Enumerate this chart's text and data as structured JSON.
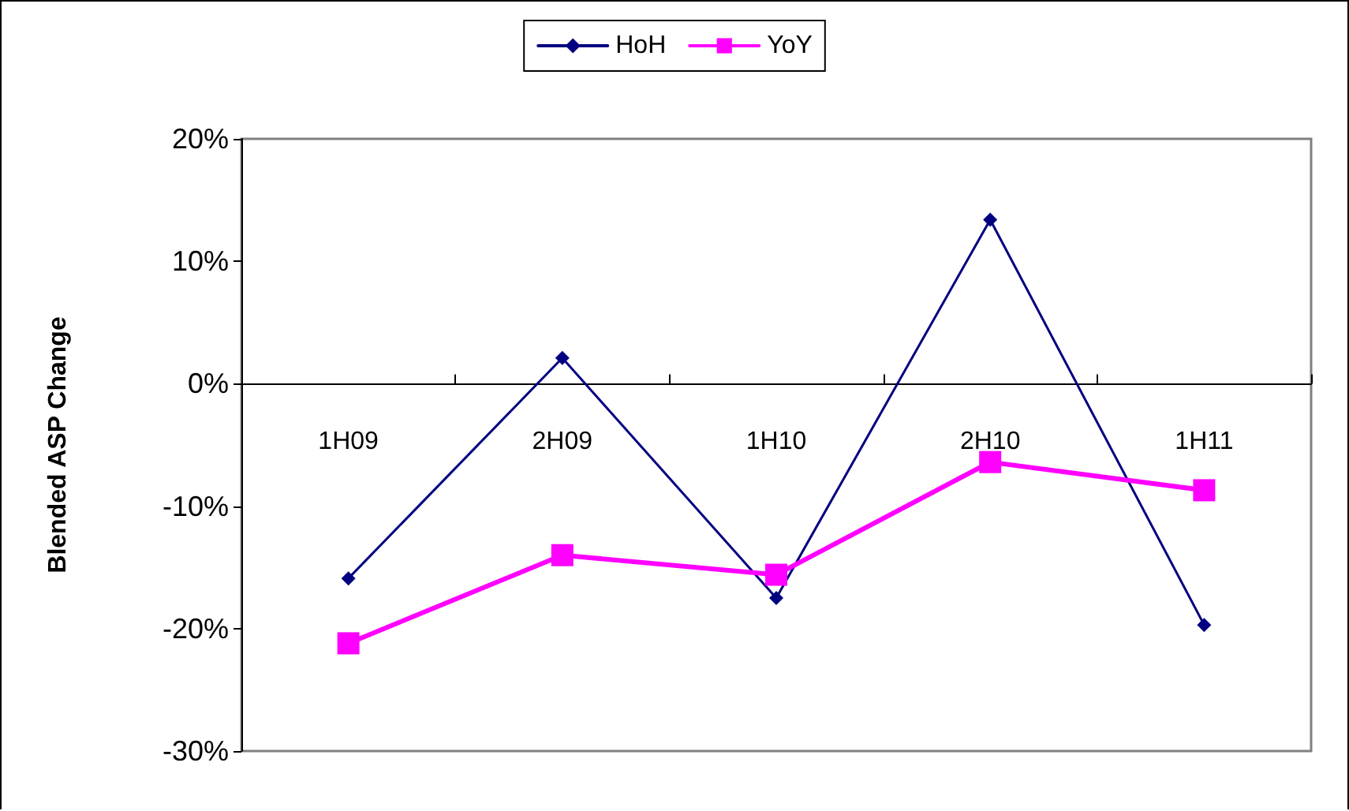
{
  "chart_data": {
    "type": "line",
    "ylabel": "Blended ASP Change",
    "categories": [
      "1H09",
      "2H09",
      "1H10",
      "2H10",
      "1H11"
    ],
    "series": [
      {
        "name": "HoH",
        "color": "#000080",
        "values": [
          -15.9,
          2.1,
          -17.5,
          13.4,
          -19.7
        ],
        "marker": "diamond"
      },
      {
        "name": "YoY",
        "color": "#ff00ff",
        "values": [
          -21.2,
          -14.0,
          -15.6,
          -6.4,
          -8.7
        ],
        "marker": "square"
      }
    ],
    "ylim": [
      -30,
      20
    ],
    "yticks": [
      {
        "value": -30,
        "label": "-30%"
      },
      {
        "value": -20,
        "label": "-20%"
      },
      {
        "value": -10,
        "label": "-10%"
      },
      {
        "value": 0,
        "label": "0%"
      },
      {
        "value": 10,
        "label": "10%"
      },
      {
        "value": 20,
        "label": "20%"
      }
    ],
    "grid": false,
    "legend": "top",
    "line_style": "solid"
  }
}
